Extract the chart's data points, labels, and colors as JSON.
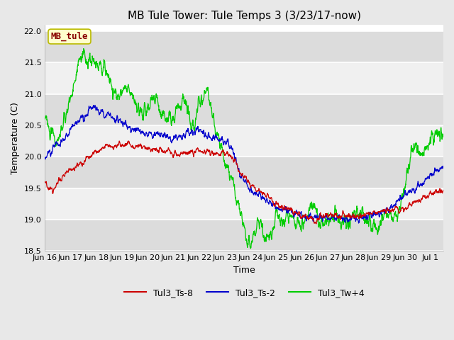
{
  "title": "MB Tule Tower: Tule Temps 3 (3/23/17-now)",
  "xlabel": "Time",
  "ylabel": "Temperature (C)",
  "ylim": [
    18.5,
    22.1
  ],
  "xlim_days": [
    0,
    15.5
  ],
  "fig_bg_color": "#e8e8e8",
  "plot_bg_color": "#ffffff",
  "band_color_odd": "#dcdcdc",
  "band_color_even": "#f0f0f0",
  "grid_color": "#cccccc",
  "legend_label_red": "Tul3_Ts-8",
  "legend_label_blue": "Tul3_Ts-2",
  "legend_label_green": "Tul3_Tw+4",
  "line_color_red": "#cc0000",
  "line_color_blue": "#0000cc",
  "line_color_green": "#00cc00",
  "watermark_text": "MB_tule",
  "watermark_bg": "#ffffcc",
  "watermark_border": "#bbbb00",
  "watermark_text_color": "#880000",
  "xtick_labels": [
    "Jun 16",
    "Jun 17",
    "Jun 18",
    "Jun 19",
    "Jun 20",
    "Jun 21",
    "Jun 22",
    "Jun 23",
    "Jun 24",
    "Jun 25",
    "Jun 26",
    "Jun 27",
    "Jun 28",
    "Jun 29",
    "Jun 30",
    "Jul 1"
  ],
  "xtick_positions": [
    0,
    1,
    2,
    3,
    4,
    5,
    6,
    7,
    8,
    9,
    10,
    11,
    12,
    13,
    14,
    15
  ],
  "ytick_values": [
    18.5,
    19.0,
    19.5,
    20.0,
    20.5,
    21.0,
    21.5,
    22.0
  ],
  "title_fontsize": 11,
  "axis_fontsize": 9,
  "tick_fontsize": 8,
  "legend_fontsize": 9,
  "linewidth": 0.9
}
